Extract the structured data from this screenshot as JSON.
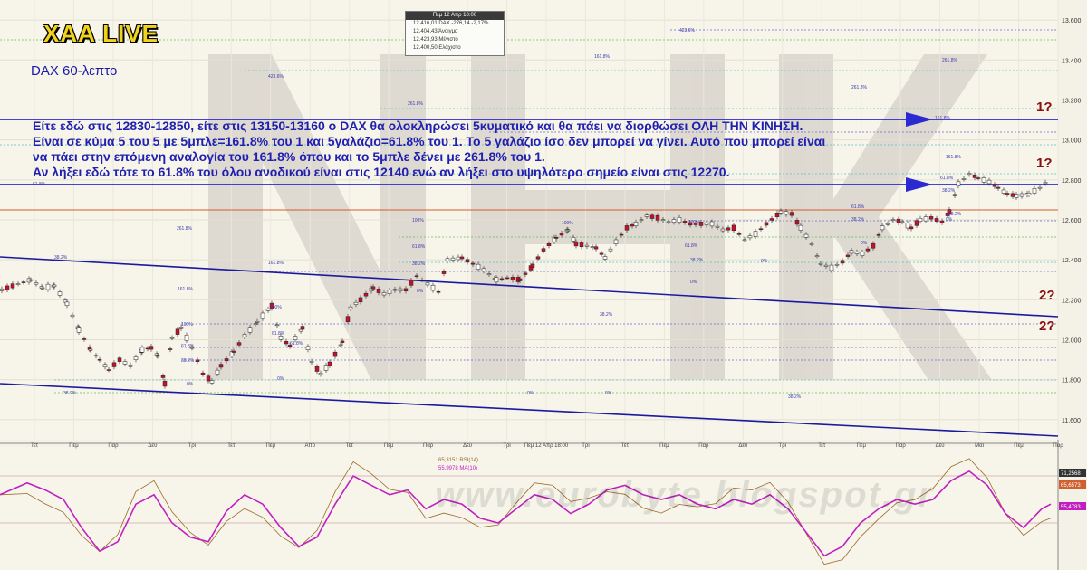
{
  "brand": "XAA LIVE",
  "subtitle": "DAX 60-λεπτο",
  "note_lines": [
    "Είτε εδώ στις 12830-12850, είτε στις 13150-13160 ο DAX θα ολοκληρώσει 5κυματικό και θα πάει να διορθώσει ΟΛΗ ΤΗΝ ΚΙΝΗΣΗ.",
    "Είναι σε κύμα 5 του 5 με 5μπλε=161.8% του 1 και 5γαλάζιο=61.8% του 1. Το 5 γαλάζιο ίσο δεν μπορεί να γίνει. Αυτό που μπορεί είναι",
    "να πάει στην επόμενη αναλογία του 161.8% όπου και το 5μπλε δένει με 261.8% του 1.",
    "Αν λήξει εδώ τότε το 61.8% του όλου ανοδικού είναι στις 12140 ενώ αν λήξει στο υψηλότερο σημείο είναι στις 12270."
  ],
  "question_marks": [
    "1?",
    "1?",
    "2?",
    "2?"
  ],
  "info_box": {
    "header": "Πεμ 12 Απρ 18:00",
    "rows": [
      "12.416,01 DAX -276,14 -2,17%",
      "12.404,43 Άνοιγμα",
      "12.423,93 Μέγιστο",
      "12.400,50 Ελάχιστο"
    ]
  },
  "watermark": "www.eurobyte.blogspot.gr",
  "rsi_legend": [
    "65,3151 RSI(14)",
    "55,9978 MA(10)"
  ],
  "colors": {
    "up": "#ffffff",
    "down": "#c8102e",
    "text_blue": "#2020b0",
    "channel": "#1a1aa0",
    "rsi": "#9a6a2e",
    "ma": "#c020c0"
  },
  "chart_data": {
    "type": "candlestick",
    "symbol": "DAX",
    "timeframe": "60-λεπτο",
    "ylim": [
      11500,
      13700
    ],
    "yticks": [
      "13.600",
      "13.400",
      "13.200",
      "13.000",
      "12.800",
      "12.600",
      "12.400",
      "12.200",
      "12.000",
      "11.800",
      "11.600"
    ],
    "ytick_values": [
      13600,
      13400,
      13200,
      13000,
      12800,
      12600,
      12400,
      12200,
      12000,
      11800,
      11600
    ],
    "xticks": [
      "Τετ",
      "Πεμ",
      "Παρ",
      "Δευ",
      "Τρι",
      "Τετ",
      "Πεμ",
      "Απρ",
      "Τετ",
      "Πεμ",
      "Παρ",
      "Δευ",
      "Τρι",
      "Πεμ 12 Απρ 18:00",
      "Τρι",
      "Τετ",
      "Πεμ",
      "Παρ",
      "Δευ",
      "Τρι",
      "Τετ",
      "Πεμ",
      "Παρ",
      "Δευ",
      "Μαι",
      "Πεμ",
      "Παρ"
    ],
    "path": [
      [
        0,
        12250
      ],
      [
        18,
        12280
      ],
      [
        32,
        12300
      ],
      [
        45,
        12260
      ],
      [
        58,
        12270
      ],
      [
        72,
        12180
      ],
      [
        85,
        12050
      ],
      [
        98,
        11950
      ],
      [
        108,
        11900
      ],
      [
        118,
        11850
      ],
      [
        130,
        11900
      ],
      [
        142,
        11870
      ],
      [
        155,
        11950
      ],
      [
        165,
        11960
      ],
      [
        172,
        11920
      ],
      [
        180,
        11780
      ],
      [
        188,
        12010
      ],
      [
        198,
        12060
      ],
      [
        210,
        11960
      ],
      [
        222,
        11830
      ],
      [
        232,
        11790
      ],
      [
        242,
        11870
      ],
      [
        256,
        11940
      ],
      [
        268,
        12020
      ],
      [
        282,
        12090
      ],
      [
        298,
        12170
      ],
      [
        308,
        12010
      ],
      [
        318,
        11970
      ],
      [
        332,
        12060
      ],
      [
        342,
        11890
      ],
      [
        352,
        11830
      ],
      [
        362,
        11880
      ],
      [
        376,
        11990
      ],
      [
        385,
        12160
      ],
      [
        396,
        12200
      ],
      [
        410,
        12260
      ],
      [
        422,
        12230
      ],
      [
        434,
        12250
      ],
      [
        446,
        12250
      ],
      [
        458,
        12320
      ],
      [
        470,
        12280
      ],
      [
        482,
        12240
      ],
      [
        492,
        12400
      ],
      [
        508,
        12410
      ],
      [
        520,
        12380
      ],
      [
        532,
        12350
      ],
      [
        546,
        12300
      ],
      [
        558,
        12310
      ],
      [
        572,
        12300
      ],
      [
        586,
        12370
      ],
      [
        598,
        12450
      ],
      [
        612,
        12510
      ],
      [
        625,
        12550
      ],
      [
        634,
        12480
      ],
      [
        646,
        12470
      ],
      [
        656,
        12460
      ],
      [
        666,
        12410
      ],
      [
        678,
        12490
      ],
      [
        690,
        12560
      ],
      [
        700,
        12580
      ],
      [
        712,
        12620
      ],
      [
        724,
        12610
      ],
      [
        736,
        12590
      ],
      [
        748,
        12600
      ],
      [
        760,
        12580
      ],
      [
        772,
        12580
      ],
      [
        784,
        12580
      ],
      [
        796,
        12550
      ],
      [
        808,
        12560
      ],
      [
        820,
        12500
      ],
      [
        832,
        12530
      ],
      [
        844,
        12580
      ],
      [
        860,
        12640
      ],
      [
        872,
        12630
      ],
      [
        882,
        12560
      ],
      [
        894,
        12480
      ],
      [
        904,
        12380
      ],
      [
        916,
        12360
      ],
      [
        928,
        12390
      ],
      [
        938,
        12440
      ],
      [
        950,
        12430
      ],
      [
        962,
        12470
      ],
      [
        972,
        12560
      ],
      [
        984,
        12600
      ],
      [
        994,
        12590
      ],
      [
        1004,
        12560
      ],
      [
        1014,
        12600
      ],
      [
        1026,
        12610
      ],
      [
        1038,
        12590
      ],
      [
        1046,
        12640
      ],
      [
        1056,
        12780
      ],
      [
        1068,
        12830
      ],
      [
        1078,
        12810
      ],
      [
        1090,
        12790
      ],
      [
        1100,
        12760
      ],
      [
        1110,
        12730
      ],
      [
        1120,
        12720
      ],
      [
        1134,
        12730
      ],
      [
        1146,
        12760
      ],
      [
        1158,
        12810
      ]
    ],
    "rsi_ylim": [
      30,
      80
    ],
    "rsi_ticks": [
      "71,2568",
      "65,6573",
      "55,4783"
    ],
    "rsi_series": [
      [
        0,
        62
      ],
      [
        30,
        67
      ],
      [
        50,
        64
      ],
      [
        70,
        60
      ],
      [
        90,
        48
      ],
      [
        110,
        38
      ],
      [
        130,
        42
      ],
      [
        150,
        58
      ],
      [
        170,
        62
      ],
      [
        190,
        50
      ],
      [
        210,
        44
      ],
      [
        230,
        42
      ],
      [
        250,
        55
      ],
      [
        270,
        62
      ],
      [
        290,
        58
      ],
      [
        310,
        48
      ],
      [
        330,
        40
      ],
      [
        350,
        44
      ],
      [
        370,
        58
      ],
      [
        390,
        70
      ],
      [
        410,
        66
      ],
      [
        430,
        62
      ],
      [
        450,
        64
      ],
      [
        470,
        56
      ],
      [
        490,
        60
      ],
      [
        510,
        58
      ],
      [
        530,
        52
      ],
      [
        550,
        50
      ],
      [
        570,
        56
      ],
      [
        590,
        62
      ],
      [
        610,
        60
      ],
      [
        630,
        54
      ],
      [
        650,
        58
      ],
      [
        670,
        64
      ],
      [
        690,
        66
      ],
      [
        710,
        62
      ],
      [
        730,
        60
      ],
      [
        750,
        62
      ],
      [
        770,
        58
      ],
      [
        790,
        56
      ],
      [
        810,
        60
      ],
      [
        830,
        58
      ],
      [
        850,
        62
      ],
      [
        870,
        56
      ],
      [
        890,
        46
      ],
      [
        910,
        36
      ],
      [
        930,
        40
      ],
      [
        950,
        50
      ],
      [
        970,
        56
      ],
      [
        990,
        60
      ],
      [
        1010,
        58
      ],
      [
        1030,
        60
      ],
      [
        1050,
        68
      ],
      [
        1070,
        72
      ],
      [
        1090,
        66
      ],
      [
        1110,
        54
      ],
      [
        1130,
        48
      ],
      [
        1150,
        56
      ],
      [
        1160,
        58
      ]
    ],
    "annotations": [
      "423.6%",
      "423.6%",
      "161.8%",
      "261.8%",
      "261.8%",
      "261.8%",
      "161.8%",
      "161.8%",
      "100%",
      "161.8%",
      "100%",
      "261.8%",
      "100%",
      "161.8%",
      "100%",
      "100%",
      "61.8%",
      "61.8%",
      "61.8%",
      "61.8%",
      "61.8%",
      "61.8%",
      "61.8%",
      "61.8%",
      "38.2%",
      "38.2%",
      "38.2%",
      "38.2%",
      "38.2%",
      "38.2%",
      "38.2%",
      "38.2%",
      "38.2%",
      "38.2%",
      "0%",
      "0%",
      "0%",
      "0%",
      "0%",
      "0%",
      "0%",
      "0%",
      "0%"
    ]
  }
}
